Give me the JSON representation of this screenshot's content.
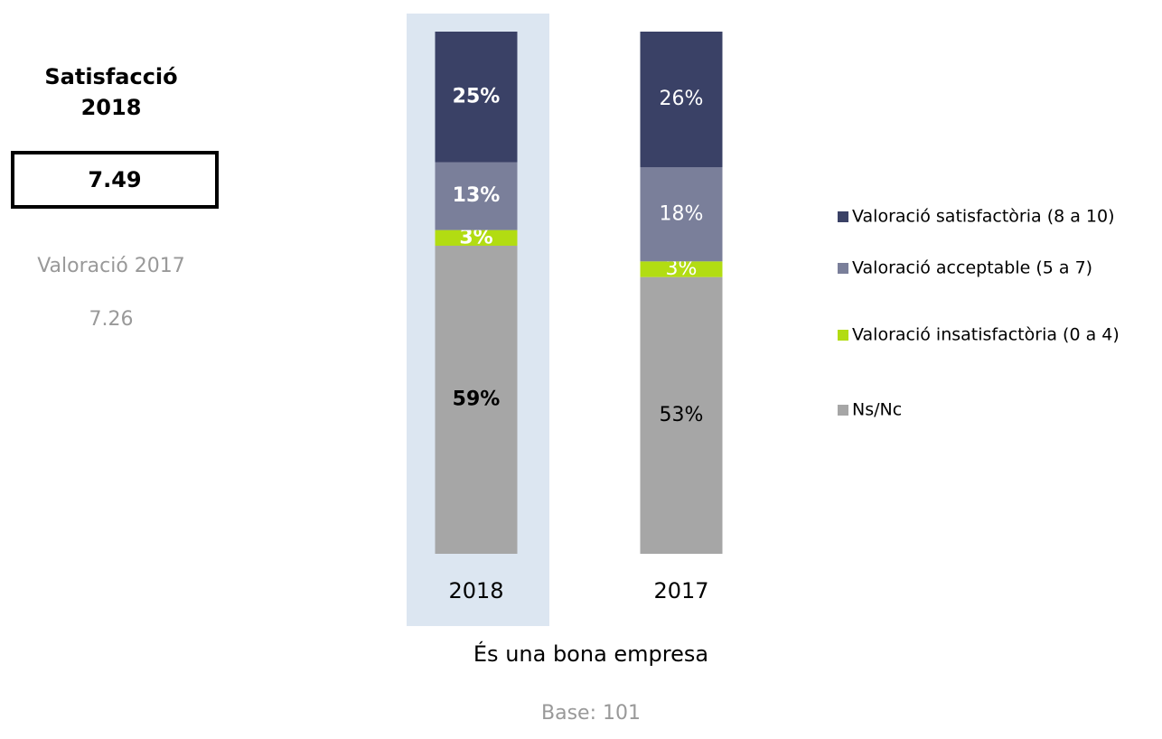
{
  "side_panel": {
    "title": "Satisfacció 2018",
    "score": "7.49",
    "previous_label": "Valoració 2017",
    "previous_score": "7.26"
  },
  "chart_data": {
    "type": "stacked_bar",
    "categories": [
      "2018",
      "2017"
    ],
    "x_label": "És una bona empresa",
    "note": "Base: 101",
    "ylim": [
      0,
      100
    ],
    "highlight_index": 0,
    "highlight_color": "#dce6f1",
    "legend": "right",
    "series": [
      {
        "name": "Valoració satisfactòria (8 a 10)",
        "color": "#3a4166",
        "label_color": "#ffffff",
        "values": [
          25,
          26
        ],
        "value_labels": [
          "25%",
          "26%"
        ]
      },
      {
        "name": "Valoració acceptable (5 a 7)",
        "color": "#7a7f9a",
        "label_color": "#ffffff",
        "values": [
          13,
          18
        ],
        "value_labels": [
          "13%",
          "18%"
        ]
      },
      {
        "name": "Valoració insatisfactòria (0 a 4)",
        "color": "#b2dc12",
        "label_color": "#ffffff",
        "values": [
          3,
          3
        ],
        "value_labels": [
          "3%",
          "3%"
        ]
      },
      {
        "name": "Ns/Nc",
        "color": "#a6a6a6",
        "label_color": "#000000",
        "values": [
          59,
          53
        ],
        "value_labels": [
          "59%",
          "53%"
        ]
      }
    ]
  }
}
